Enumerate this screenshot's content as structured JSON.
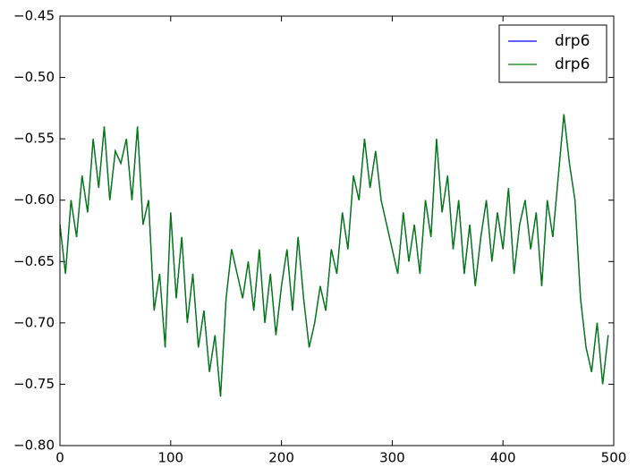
{
  "chart_data": {
    "type": "line",
    "x": [
      0,
      5,
      10,
      15,
      20,
      25,
      30,
      35,
      40,
      45,
      50,
      55,
      60,
      65,
      70,
      75,
      80,
      85,
      90,
      95,
      100,
      105,
      110,
      115,
      120,
      125,
      130,
      135,
      140,
      145,
      150,
      155,
      160,
      165,
      170,
      175,
      180,
      185,
      190,
      195,
      200,
      205,
      210,
      215,
      220,
      225,
      230,
      235,
      240,
      245,
      250,
      255,
      260,
      265,
      270,
      275,
      280,
      285,
      290,
      295,
      300,
      305,
      310,
      315,
      320,
      325,
      330,
      335,
      340,
      345,
      350,
      355,
      360,
      365,
      370,
      375,
      380,
      385,
      390,
      395,
      400,
      405,
      410,
      415,
      420,
      425,
      430,
      435,
      440,
      445,
      450,
      455,
      460,
      465,
      470,
      475,
      480,
      485,
      490,
      495
    ],
    "series": [
      {
        "name": "drp6",
        "color": "#0000ff",
        "values": [
          -0.62,
          -0.66,
          -0.6,
          -0.63,
          -0.58,
          -0.61,
          -0.55,
          -0.59,
          -0.54,
          -0.6,
          -0.56,
          -0.57,
          -0.55,
          -0.6,
          -0.54,
          -0.62,
          -0.6,
          -0.69,
          -0.66,
          -0.72,
          -0.61,
          -0.68,
          -0.63,
          -0.7,
          -0.66,
          -0.72,
          -0.69,
          -0.74,
          -0.71,
          -0.76,
          -0.68,
          -0.64,
          -0.66,
          -0.68,
          -0.65,
          -0.69,
          -0.64,
          -0.7,
          -0.66,
          -0.71,
          -0.67,
          -0.64,
          -0.69,
          -0.63,
          -0.68,
          -0.72,
          -0.7,
          -0.67,
          -0.69,
          -0.64,
          -0.66,
          -0.61,
          -0.64,
          -0.58,
          -0.6,
          -0.55,
          -0.59,
          -0.56,
          -0.6,
          -0.62,
          -0.64,
          -0.66,
          -0.61,
          -0.65,
          -0.62,
          -0.66,
          -0.6,
          -0.63,
          -0.55,
          -0.61,
          -0.58,
          -0.64,
          -0.6,
          -0.66,
          -0.62,
          -0.67,
          -0.63,
          -0.6,
          -0.65,
          -0.61,
          -0.64,
          -0.59,
          -0.66,
          -0.62,
          -0.6,
          -0.64,
          -0.61,
          -0.67,
          -0.6,
          -0.63,
          -0.58,
          -0.53,
          -0.57,
          -0.6,
          -0.68,
          -0.72,
          -0.74,
          -0.7,
          -0.75,
          -0.71
        ]
      },
      {
        "name": "drp6",
        "color": "#008000",
        "values": [
          -0.62,
          -0.66,
          -0.6,
          -0.63,
          -0.58,
          -0.61,
          -0.55,
          -0.59,
          -0.54,
          -0.6,
          -0.56,
          -0.57,
          -0.55,
          -0.6,
          -0.54,
          -0.62,
          -0.6,
          -0.69,
          -0.66,
          -0.72,
          -0.61,
          -0.68,
          -0.63,
          -0.7,
          -0.66,
          -0.72,
          -0.69,
          -0.74,
          -0.71,
          -0.76,
          -0.68,
          -0.64,
          -0.66,
          -0.68,
          -0.65,
          -0.69,
          -0.64,
          -0.7,
          -0.66,
          -0.71,
          -0.67,
          -0.64,
          -0.69,
          -0.63,
          -0.68,
          -0.72,
          -0.7,
          -0.67,
          -0.69,
          -0.64,
          -0.66,
          -0.61,
          -0.64,
          -0.58,
          -0.6,
          -0.55,
          -0.59,
          -0.56,
          -0.6,
          -0.62,
          -0.64,
          -0.66,
          -0.61,
          -0.65,
          -0.62,
          -0.66,
          -0.6,
          -0.63,
          -0.55,
          -0.61,
          -0.58,
          -0.64,
          -0.6,
          -0.66,
          -0.62,
          -0.67,
          -0.63,
          -0.6,
          -0.65,
          -0.61,
          -0.64,
          -0.59,
          -0.66,
          -0.62,
          -0.6,
          -0.64,
          -0.61,
          -0.67,
          -0.6,
          -0.63,
          -0.58,
          -0.53,
          -0.57,
          -0.6,
          -0.68,
          -0.72,
          -0.74,
          -0.7,
          -0.75,
          -0.71
        ]
      }
    ],
    "xlim": [
      0,
      500
    ],
    "xticks": [
      0,
      100,
      200,
      300,
      400,
      500
    ],
    "ylim": [
      -0.8,
      -0.45
    ],
    "yticks": [
      {
        "value": -0.8,
        "label": "−0.80"
      },
      {
        "value": -0.75,
        "label": "−0.75"
      },
      {
        "value": -0.7,
        "label": "−0.70"
      },
      {
        "value": -0.65,
        "label": "−0.65"
      },
      {
        "value": -0.6,
        "label": "−0.60"
      },
      {
        "value": -0.55,
        "label": "−0.55"
      },
      {
        "value": -0.5,
        "label": "−0.50"
      },
      {
        "value": -0.45,
        "label": "−0.45"
      }
    ],
    "legend": "upper right",
    "grid": false
  }
}
